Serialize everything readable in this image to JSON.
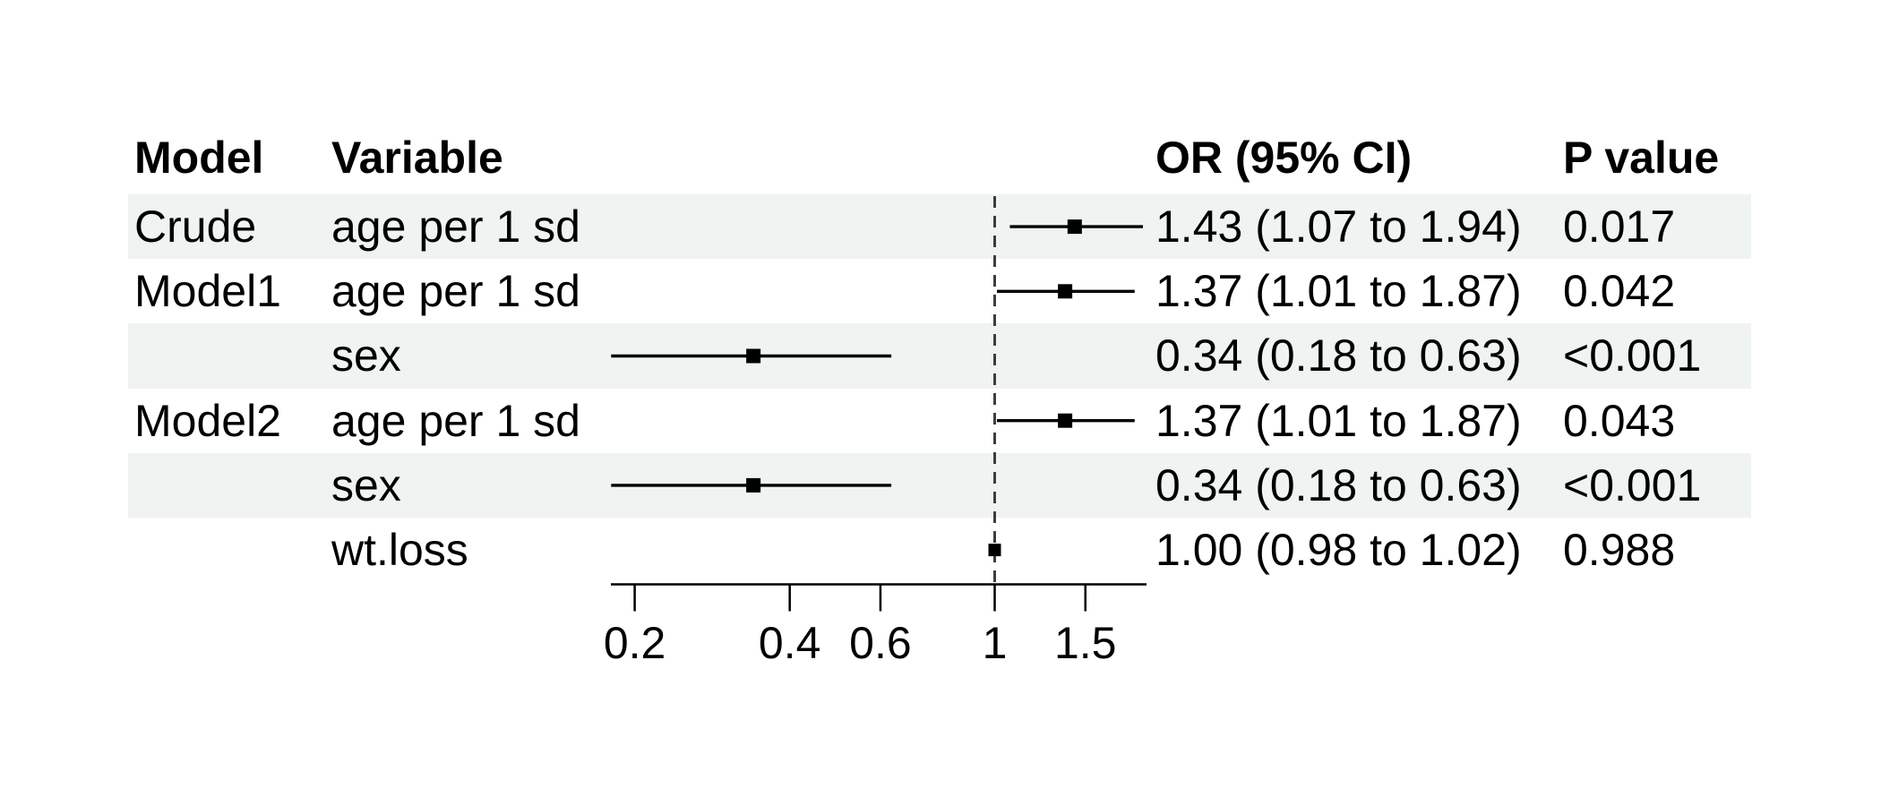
{
  "chart_data": {
    "type": "forest",
    "title": "",
    "columns": [
      "Model",
      "Variable",
      "OR (95% CI)",
      "P value"
    ],
    "axis": {
      "scale": "log10",
      "ticks": [
        0.2,
        0.4,
        0.6,
        1,
        1.5
      ],
      "tick_labels": [
        "0.2",
        "0.4",
        "0.6",
        "1",
        "1.5"
      ],
      "range": [
        0.179,
        1.97
      ],
      "refline": 1,
      "grid": false
    },
    "rows": [
      {
        "model": "Crude",
        "variable": "age per 1 sd",
        "or": 1.43,
        "ci_low": 1.07,
        "ci_high": 1.94,
        "or_ci_label": "1.43 (1.07 to 1.94)",
        "p_label": "0.017",
        "shaded": true,
        "box_size": 16
      },
      {
        "model": "Model1",
        "variable": "age per 1 sd",
        "or": 1.37,
        "ci_low": 1.01,
        "ci_high": 1.87,
        "or_ci_label": "1.37 (1.01 to 1.87)",
        "p_label": "0.042",
        "shaded": false,
        "box_size": 16
      },
      {
        "model": "",
        "variable": "sex",
        "or": 0.34,
        "ci_low": 0.18,
        "ci_high": 0.63,
        "or_ci_label": "0.34 (0.18 to 0.63)",
        "p_label": "<0.001",
        "shaded": true,
        "box_size": 16
      },
      {
        "model": "Model2",
        "variable": "age per 1 sd",
        "or": 1.37,
        "ci_low": 1.01,
        "ci_high": 1.87,
        "or_ci_label": "1.37 (1.01 to 1.87)",
        "p_label": "0.043",
        "shaded": false,
        "box_size": 16
      },
      {
        "model": "",
        "variable": "sex",
        "or": 0.34,
        "ci_low": 0.18,
        "ci_high": 0.63,
        "or_ci_label": "0.34 (0.18 to 0.63)",
        "p_label": "<0.001",
        "shaded": true,
        "box_size": 16
      },
      {
        "model": "",
        "variable": "wt.loss",
        "or": 1.0,
        "ci_low": 0.98,
        "ci_high": 1.02,
        "or_ci_label": "1.00 (0.98 to 1.02)",
        "p_label": "0.988",
        "shaded": false,
        "box_size": 14
      }
    ],
    "colors": {
      "background": "#ffffff",
      "stripe": "#eff3f2",
      "text": "#000000",
      "marker": "#000000",
      "ci_line": "#000000",
      "axis": "#000000",
      "refline": "#3d3d3d"
    },
    "legend": null,
    "xlabel": "",
    "ylabel": ""
  }
}
